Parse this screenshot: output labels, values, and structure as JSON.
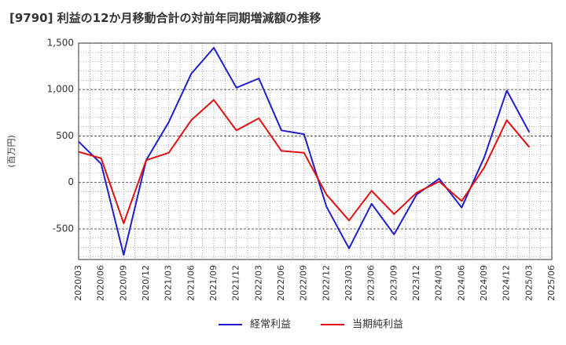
{
  "chart_data": {
    "type": "line",
    "title": "[9790]  利益の12か月移動合計の対前年同期増減額の推移",
    "xlabel": "",
    "ylabel": "(百万円)",
    "ylim": [
      -830,
      1500
    ],
    "yticks": [
      -500,
      0,
      500,
      1000,
      1500
    ],
    "ytick_labels": [
      "-500",
      "0",
      "500",
      "1,000",
      "1,500"
    ],
    "grid": true,
    "legend_position": "bottom",
    "categories": [
      "2020/03",
      "2020/06",
      "2020/09",
      "2020/12",
      "2021/03",
      "2021/06",
      "2021/09",
      "2021/12",
      "2022/03",
      "2022/06",
      "2022/09",
      "2022/12",
      "2023/03",
      "2023/06",
      "2023/09",
      "2023/12",
      "2024/03",
      "2024/06",
      "2024/09",
      "2024/12",
      "2025/03",
      "2025/06"
    ],
    "series": [
      {
        "name": "経常利益",
        "color": "#1f1fcc",
        "values": [
          440,
          200,
          -780,
          240,
          650,
          1170,
          1450,
          1020,
          1120,
          560,
          520,
          -260,
          -710,
          -230,
          -560,
          -130,
          40,
          -270,
          270,
          990,
          540,
          null
        ]
      },
      {
        "name": "当期純利益",
        "color": "#e01010",
        "values": [
          330,
          260,
          -440,
          240,
          320,
          670,
          890,
          560,
          690,
          340,
          320,
          -130,
          -410,
          -90,
          -340,
          -110,
          10,
          -200,
          160,
          670,
          380,
          null
        ]
      }
    ]
  }
}
